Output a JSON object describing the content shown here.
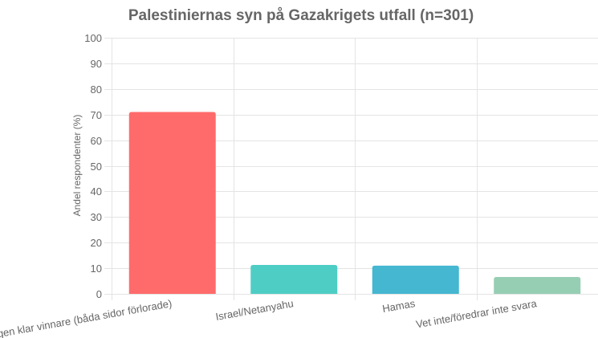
{
  "chart_data": {
    "type": "bar",
    "title": "Palestiniernas syn på Gazakrigets utfall (n=301)",
    "xlabel": "",
    "ylabel": "Andel respondenter (%)",
    "categories": [
      "Ingen klar vinnare (båda sidor förlorade)",
      "Israel/Netanyahu",
      "Hamas",
      "Vet inte/föredrar inte svara"
    ],
    "values": [
      71,
      11.3,
      11,
      6.6
    ],
    "colors": [
      "#ff6b6b",
      "#4ecdc4",
      "#45b7d1",
      "#96ceb4"
    ],
    "ylim": [
      0,
      100
    ],
    "yticks": [
      0,
      10,
      20,
      30,
      40,
      50,
      60,
      70,
      80,
      90,
      100
    ],
    "grid": true,
    "legend": "none"
  }
}
